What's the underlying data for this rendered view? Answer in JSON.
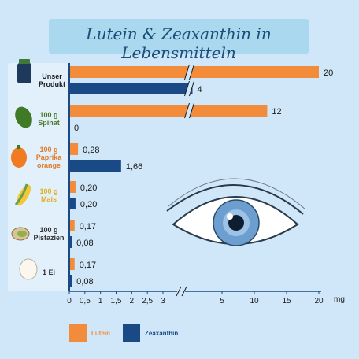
{
  "title": "Lutein & Zeaxanthin in Lebensmitteln",
  "colors": {
    "lutein": "#f28c3a",
    "zeaxanthin": "#1a4a86",
    "axis": "#1a4a86"
  },
  "chart_data": {
    "type": "bar",
    "orientation": "horizontal",
    "axis_break": "between 3 and 5",
    "unit": "mg",
    "categories": [
      {
        "label": [
          "Unser",
          "Produkt"
        ],
        "icon": "supplement-jar-icon",
        "color": "#1a1a1a"
      },
      {
        "label": [
          "100 g",
          "Spinat"
        ],
        "icon": "spinach-icon",
        "color": "#4a7a28"
      },
      {
        "label": [
          "100 g",
          "Paprika",
          "orange"
        ],
        "icon": "paprika-icon",
        "color": "#e07a26"
      },
      {
        "label": [
          "100 g",
          "Mais"
        ],
        "icon": "corn-icon",
        "color": "#e0b020"
      },
      {
        "label": [
          "100 g",
          "Pistazien"
        ],
        "icon": "pistachio-icon",
        "color": "#333333"
      },
      {
        "label": [
          "1 Ei"
        ],
        "icon": "egg-icon",
        "color": "#333333"
      }
    ],
    "series": [
      {
        "name": "Lutein",
        "values": [
          20,
          12,
          0.28,
          0.2,
          0.17,
          0.17
        ],
        "labels": [
          "20",
          "12",
          "0,28",
          "0,20",
          "0,17",
          "0,17"
        ]
      },
      {
        "name": "Zeaxanthin",
        "values": [
          4,
          0,
          1.66,
          0.2,
          0.08,
          0.08
        ],
        "labels": [
          "4",
          "0",
          "1,66",
          "0,20",
          "0,08",
          "0,08"
        ]
      }
    ],
    "x_ticks": [
      {
        "value": 0,
        "label": "0"
      },
      {
        "value": 0.5,
        "label": "0,5"
      },
      {
        "value": 1,
        "label": "1"
      },
      {
        "value": 1.5,
        "label": "1,5"
      },
      {
        "value": 2,
        "label": "2"
      },
      {
        "value": 2.5,
        "label": "2,5"
      },
      {
        "value": 3,
        "label": "3"
      },
      {
        "value": 5,
        "label": "5"
      },
      {
        "value": 10,
        "label": "10"
      },
      {
        "value": 15,
        "label": "15"
      },
      {
        "value": 20,
        "label": "20"
      }
    ],
    "xlabel": "mg",
    "legend": {
      "position": "bottom-left",
      "items": [
        "Lutein",
        "Zeaxanthin"
      ]
    }
  }
}
